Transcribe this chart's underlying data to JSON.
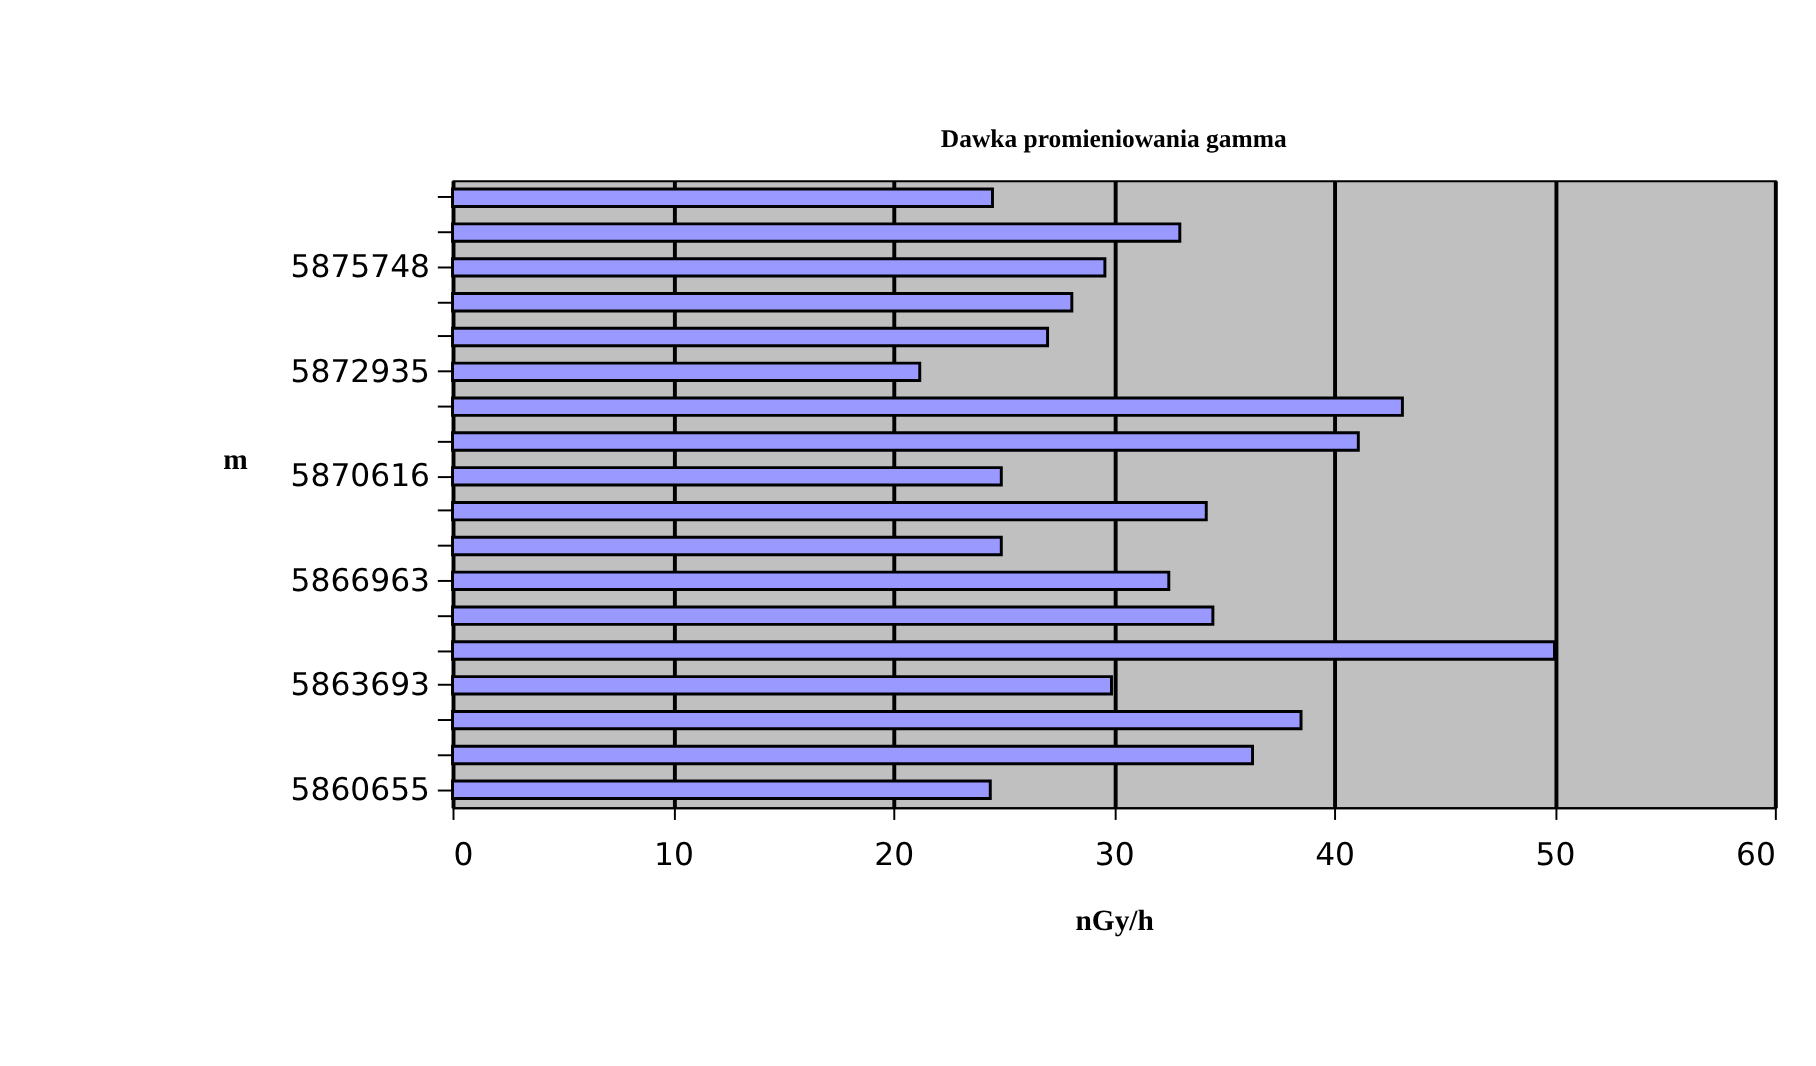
{
  "chart_data": {
    "type": "bar",
    "orientation": "horizontal",
    "title": "Dawka promieniowania gamma",
    "xlabel": "nGy/h",
    "ylabel": "m",
    "categories": [
      null,
      null,
      "5875748",
      null,
      null,
      "5872935",
      null,
      null,
      "5870616",
      null,
      null,
      "5866963",
      null,
      null,
      "5863693",
      null,
      null,
      "5860655"
    ],
    "values": [
      24.5,
      33.0,
      29.6,
      28.1,
      27.0,
      21.2,
      43.1,
      41.1,
      24.9,
      34.2,
      24.9,
      32.5,
      34.5,
      50.0,
      29.9,
      38.5,
      36.3,
      24.4
    ],
    "color": "#9999ff",
    "xlim": [
      0,
      60
    ],
    "xticks": [
      0,
      10,
      20,
      30,
      40,
      50,
      60
    ],
    "grid": "x"
  }
}
